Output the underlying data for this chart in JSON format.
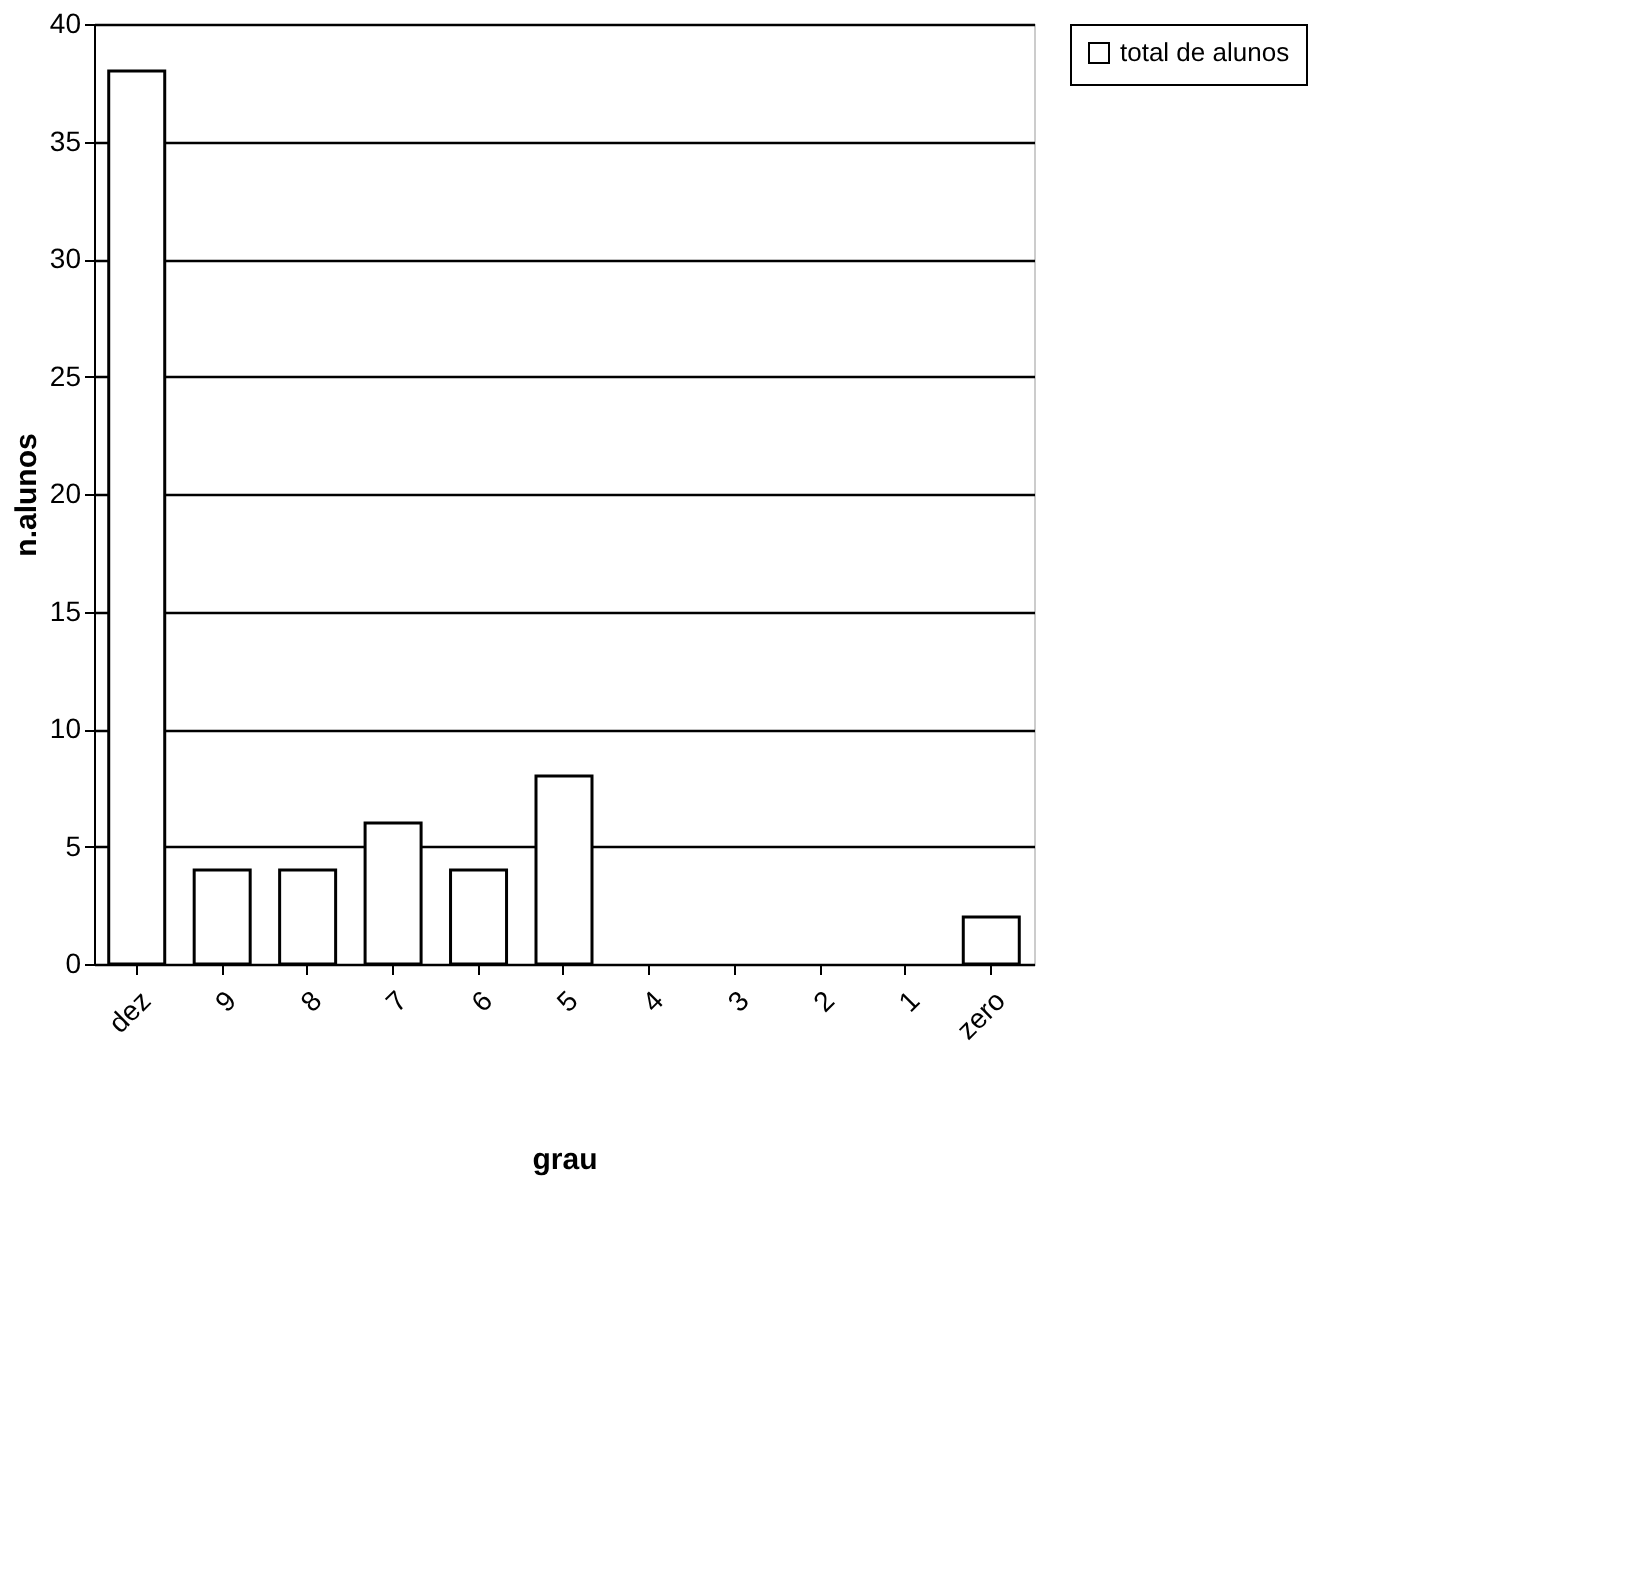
{
  "chart_data": {
    "type": "bar",
    "xlabel": "grau",
    "ylabel": "n.alunos",
    "categories": [
      "dez",
      "9",
      "8",
      "7",
      "6",
      "5",
      "4",
      "3",
      "2",
      "1",
      "zero"
    ],
    "series": [
      {
        "name": "total de alunos",
        "color": "#ffffff",
        "values": [
          38,
          4,
          4,
          6,
          4,
          8,
          0,
          0,
          0,
          0,
          2
        ]
      }
    ],
    "ylim": [
      0,
      40
    ],
    "yticks": [
      0,
      5,
      10,
      15,
      20,
      25,
      30,
      35,
      40
    ],
    "grid": "y",
    "legend": "right"
  }
}
